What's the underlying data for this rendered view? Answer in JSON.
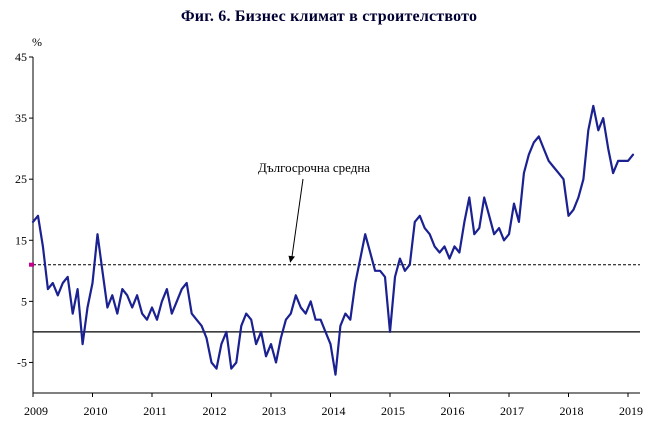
{
  "chart_data": {
    "type": "line",
    "title": "Фиг. 6. Бизнес климат в строителството",
    "ylabel": "%",
    "ylim": [
      -10,
      45
    ],
    "yticks": [
      45,
      35,
      25,
      15,
      5,
      -5
    ],
    "xticks": [
      2009,
      2010,
      2011,
      2012,
      2013,
      2014,
      2015,
      2016,
      2017,
      2018,
      2019
    ],
    "x_start_year": 2009,
    "x_step": "monthly",
    "grid": "off",
    "legend": "none",
    "series": [
      {
        "name": "Бизнес климат в строителството",
        "color": "#1b2190",
        "values": [
          18,
          19,
          14,
          7,
          8,
          6,
          8,
          9,
          3,
          7,
          -2,
          4,
          8,
          16,
          10,
          4,
          6,
          3,
          7,
          6,
          4,
          6,
          3,
          2,
          4,
          2,
          5,
          7,
          3,
          5,
          7,
          8,
          3,
          2,
          1,
          -1,
          -5,
          -6,
          -2,
          0,
          -6,
          -5,
          1,
          3,
          2,
          -2,
          0,
          -4,
          -2,
          -5,
          -1,
          2,
          3,
          6,
          4,
          3,
          5,
          2,
          2,
          0,
          -2,
          -7,
          1,
          3,
          2,
          8,
          12,
          16,
          13,
          10,
          10,
          9,
          0,
          9,
          12,
          10,
          11,
          18,
          19,
          17,
          16,
          14,
          13,
          14,
          12,
          14,
          13,
          18,
          22,
          16,
          17,
          22,
          19,
          16,
          17,
          15,
          16,
          21,
          18,
          26,
          29,
          31,
          32,
          30,
          28,
          27,
          26,
          25,
          19,
          20,
          22,
          25,
          33,
          37,
          33,
          35,
          30,
          26,
          28,
          28,
          28,
          29
        ]
      }
    ],
    "reference_lines": [
      {
        "name": "Дългосрочна средна",
        "value": 11,
        "style": "dashed",
        "color": "#000000"
      },
      {
        "name": "нулева линия",
        "value": 0,
        "style": "solid",
        "color": "#000000"
      }
    ],
    "average_marker": {
      "value": 11,
      "color": "#c4008f"
    },
    "annotation": {
      "text": "Дългосрочна средна",
      "points_to_value": 11
    }
  }
}
